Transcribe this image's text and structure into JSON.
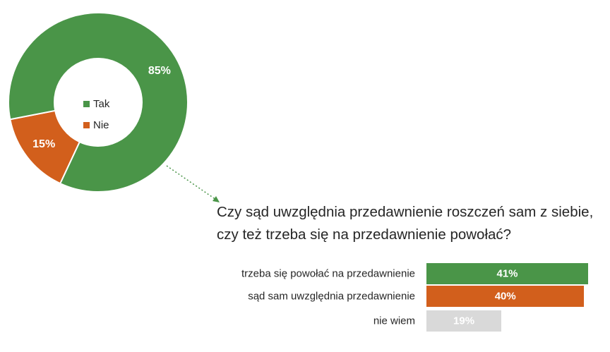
{
  "chart_data": [
    {
      "type": "pie",
      "donut": true,
      "categories": [
        "Tak",
        "Nie"
      ],
      "values": [
        85,
        15
      ],
      "data_labels": [
        "85%",
        "15%"
      ],
      "colors": [
        "#4a9548",
        "#d25f1c"
      ],
      "legend": "center",
      "legend_entries": [
        "Tak",
        "Nie"
      ]
    },
    {
      "type": "bar",
      "orientation": "horizontal",
      "title": "Czy sąd uwzględnia przedawnienie roszczeń sam z siebie, czy też trzeba się na przedawnienie powołać?",
      "categories": [
        "trzeba się powołać na przedawnienie",
        "sąd sam uwzględnia przedawnienie",
        "nie wiem"
      ],
      "values": [
        41,
        40,
        19
      ],
      "data_labels": [
        "41%",
        "40%",
        "19%"
      ],
      "colors": [
        "#4a9548",
        "#d25f1c",
        "#d9d9d9"
      ],
      "label_colors": [
        "#ffffff",
        "#ffffff",
        "#ffffff"
      ]
    }
  ]
}
